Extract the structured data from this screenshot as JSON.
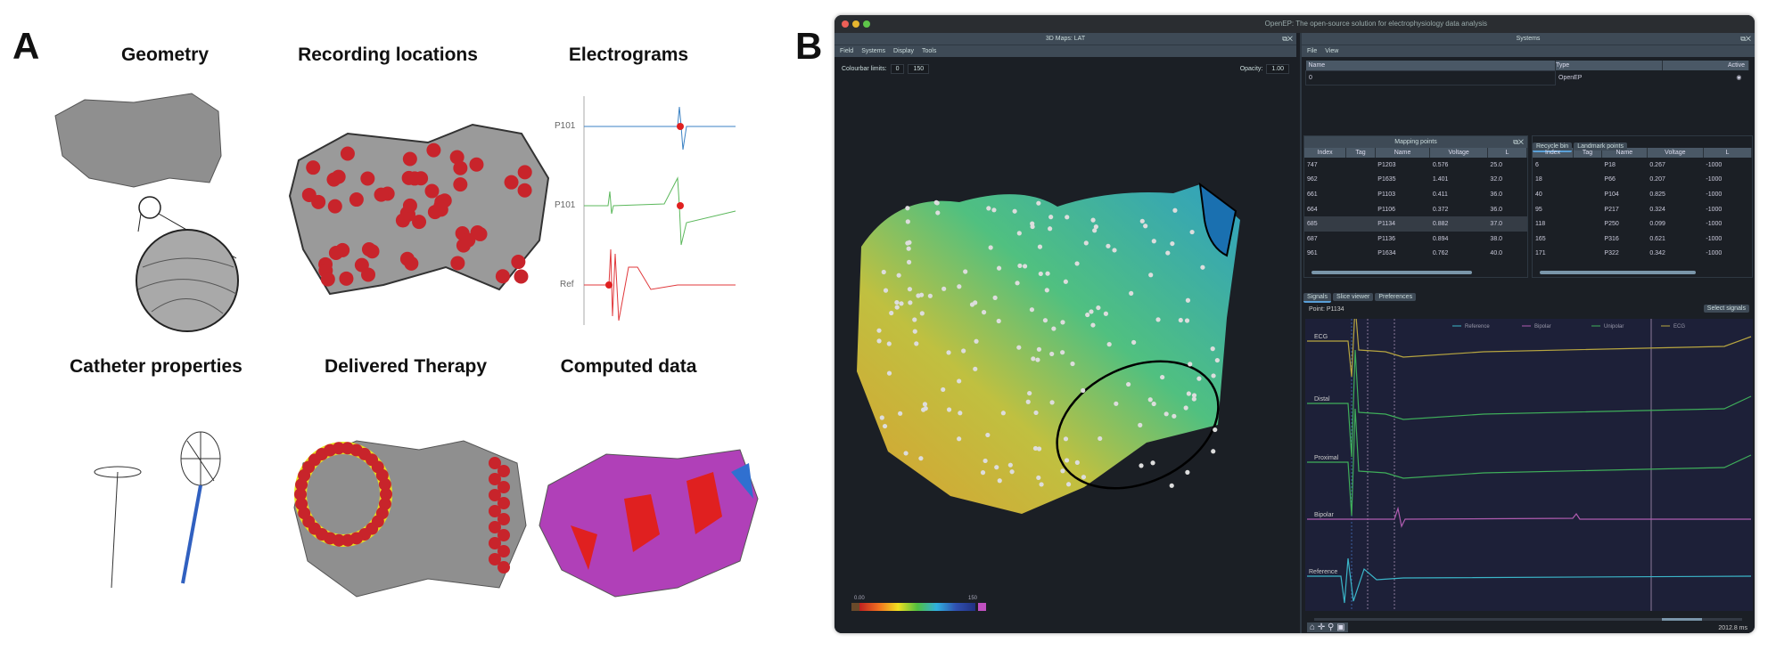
{
  "panel_a": {
    "label": "A",
    "titles": {
      "geometry": "Geometry",
      "recording": "Recording locations",
      "electrograms": "Electrograms",
      "catheter": "Catheter properties",
      "therapy": "Delivered Therapy",
      "computed": "Computed data"
    },
    "electrogram_labels": [
      "P101",
      "P101",
      "Ref"
    ],
    "colors": {
      "surface": "#8f8f8f",
      "points": "#c8242b",
      "trace1": "#3b82c4",
      "trace2": "#5cb85c",
      "trace3": "#e0383b"
    }
  },
  "panel_b": {
    "label": "B",
    "window_title": "OpenEP: The open-source solution for electrophysiology data analysis",
    "left_dock": {
      "title": "3D Maps: LAT",
      "menu": [
        "Field",
        "Systems",
        "Display",
        "Tools"
      ],
      "colourbar_label": "Colourbar limits:",
      "colourbar_min": "0",
      "colourbar_max": "150",
      "opacity_label": "Opacity:",
      "opacity_value": "1.00",
      "legend_min": "0.00",
      "legend_max": "150"
    },
    "systems": {
      "title": "Systems",
      "menu": [
        "File",
        "View"
      ],
      "headers": [
        "Name",
        "Type",
        "Active"
      ],
      "rows": [
        {
          "name": "0",
          "type": "OpenEP"
        }
      ]
    },
    "mapping_points": {
      "title": "Mapping points",
      "headers": [
        "Index",
        "Tag",
        "Name",
        "Voltage",
        "L"
      ],
      "rows": [
        [
          "747",
          "",
          "P1203",
          "0.576",
          "25.0"
        ],
        [
          "962",
          "",
          "P1635",
          "1.401",
          "32.0"
        ],
        [
          "661",
          "",
          "P1103",
          "0.411",
          "36.0"
        ],
        [
          "664",
          "",
          "P1106",
          "0.372",
          "36.0"
        ],
        [
          "685",
          "",
          "P1134",
          "0.882",
          "37.0"
        ],
        [
          "687",
          "",
          "P1136",
          "0.894",
          "38.0"
        ],
        [
          "961",
          "",
          "P1634",
          "0.762",
          "40.0"
        ]
      ]
    },
    "recycle_bin": {
      "tabs": [
        "Recycle bin",
        "Landmark points"
      ],
      "headers": [
        "Index",
        "Tag",
        "Name",
        "Voltage",
        "L"
      ],
      "rows": [
        [
          "6",
          "",
          "P18",
          "0.267",
          "-1000"
        ],
        [
          "18",
          "",
          "P66",
          "0.207",
          "-1000"
        ],
        [
          "40",
          "",
          "P104",
          "0.825",
          "-1000"
        ],
        [
          "95",
          "",
          "P217",
          "0.324",
          "-1000"
        ],
        [
          "118",
          "",
          "P250",
          "0.099",
          "-1000"
        ],
        [
          "165",
          "",
          "P316",
          "0.621",
          "-1000"
        ],
        [
          "171",
          "",
          "P322",
          "0.342",
          "-1000"
        ]
      ]
    },
    "signals": {
      "tabs": [
        "Signals",
        "Slice viewer",
        "Preferences"
      ],
      "point": "Point: P1134",
      "select_button": "Select signals",
      "legend": [
        {
          "name": "Reference",
          "color": "#3bb6c9"
        },
        {
          "name": "Bipolar",
          "color": "#b05cb0"
        },
        {
          "name": "Unipolar",
          "color": "#3fae5a"
        },
        {
          "name": "ECG",
          "color": "#b8a640"
        }
      ],
      "trace_labels": [
        "ECG",
        "Distal",
        "Proximal",
        "Bipolar",
        "Reference"
      ],
      "time": "2012.8 ms"
    },
    "toolbar_icons": [
      "home-icon",
      "pan-icon",
      "zoom-icon",
      "save-icon"
    ]
  }
}
